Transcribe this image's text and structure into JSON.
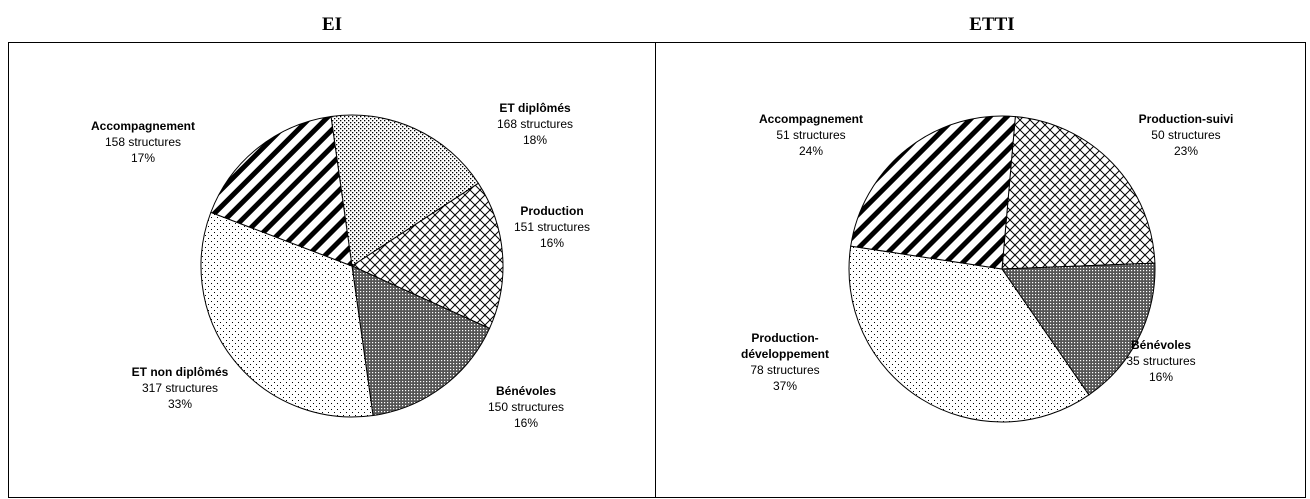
{
  "chart_data": [
    {
      "type": "pie",
      "title": "EI",
      "categories": [
        "ET diplômés",
        "Production",
        "Bénévoles",
        "ET non diplômés",
        "Accompagnement"
      ],
      "values": [
        18,
        16,
        16,
        33,
        17
      ],
      "value_labels": [
        "18%",
        "16%",
        "16%",
        "33%",
        "17%"
      ],
      "counts": [
        168,
        151,
        150,
        317,
        158
      ],
      "count_labels": [
        "168 structures",
        "151 structures",
        "150 structures",
        "317 structures",
        "158 structures"
      ]
    },
    {
      "type": "pie",
      "title": "ETTI",
      "categories": [
        "Production-suivi",
        "Bénévoles",
        "Production-\ndéveloppement",
        "Accompagnement"
      ],
      "values": [
        23,
        16,
        37,
        24
      ],
      "value_labels": [
        "23%",
        "16%",
        "37%",
        "24%"
      ],
      "counts": [
        50,
        35,
        78,
        51
      ],
      "count_labels": [
        "50 structures",
        "35 structures",
        "78 structures",
        "51 structures"
      ]
    }
  ]
}
